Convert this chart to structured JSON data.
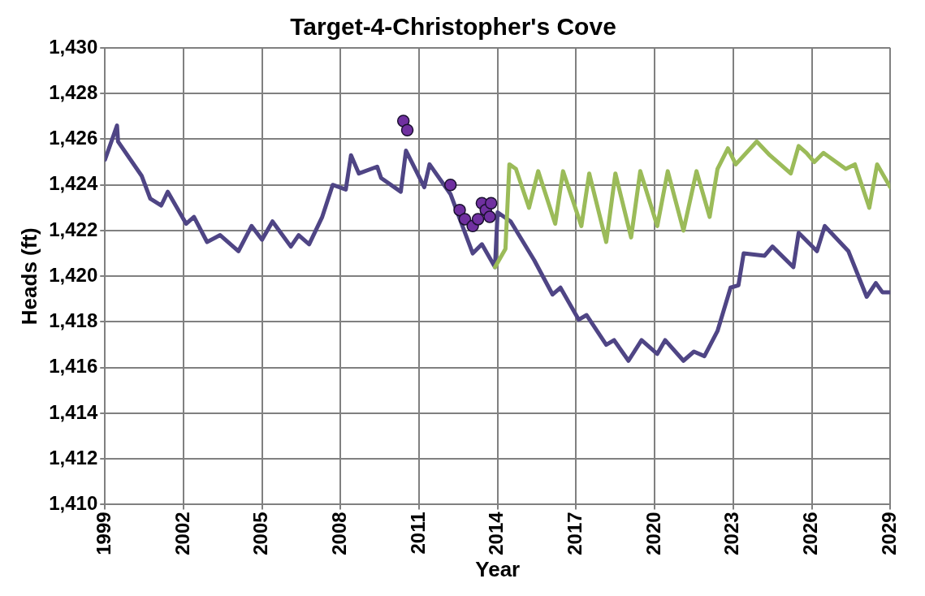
{
  "chart_data": {
    "type": "line",
    "title": "Target-4-Christopher's Cove",
    "xlabel": "Year",
    "ylabel": "Heads (ft)",
    "xlim": [
      1999,
      2029
    ],
    "xticks": [
      1999,
      2002,
      2005,
      2008,
      2011,
      2014,
      2017,
      2020,
      2023,
      2026,
      2029
    ],
    "ylim": [
      1410,
      1430
    ],
    "yticks": [
      {
        "value": 1410,
        "label": "1,410"
      },
      {
        "value": 1412,
        "label": "1,412"
      },
      {
        "value": 1414,
        "label": "1,414"
      },
      {
        "value": 1416,
        "label": "1,416"
      },
      {
        "value": 1418,
        "label": "1,418"
      },
      {
        "value": 1420,
        "label": "1,420"
      },
      {
        "value": 1422,
        "label": "1,422"
      },
      {
        "value": 1424,
        "label": "1,424"
      },
      {
        "value": 1426,
        "label": "1,426"
      },
      {
        "value": 1428,
        "label": "1,428"
      },
      {
        "value": 1430,
        "label": "1,430"
      }
    ],
    "grid": true,
    "legend": false,
    "marker": "none",
    "line_style": "solid",
    "series": [
      {
        "color": "#4f4585",
        "x": [
          1999.0,
          1999.46,
          1999.5,
          2000.4,
          2000.73,
          2001.15,
          2001.4,
          2002.1,
          2002.4,
          2002.9,
          2003.4,
          2004.1,
          2004.6,
          2005.0,
          2005.4,
          2006.1,
          2006.4,
          2006.8,
          2007.3,
          2007.7,
          2008.2,
          2008.4,
          2008.7,
          2009.4,
          2009.55,
          2010.3,
          2010.5,
          2011.2,
          2011.4,
          2012.2,
          2013.05,
          2013.4,
          2013.9,
          2014.0,
          2014.5,
          2015.4,
          2016.1,
          2016.4,
          2017.1,
          2017.4,
          2018.15,
          2018.45,
          2019.0,
          2019.5,
          2020.1,
          2020.4,
          2021.1,
          2021.5,
          2021.9,
          2022.4,
          2022.9,
          2023.2,
          2023.4,
          2024.2,
          2024.5,
          2025.3,
          2025.5,
          2026.2,
          2026.5,
          2027.4,
          2028.1,
          2028.45,
          2028.7,
          2029.0
        ],
        "values": [
          1425.1,
          1426.6,
          1425.9,
          1424.4,
          1423.4,
          1423.1,
          1423.7,
          1422.3,
          1422.6,
          1421.5,
          1421.8,
          1421.1,
          1422.2,
          1421.6,
          1422.4,
          1421.3,
          1421.8,
          1421.4,
          1422.6,
          1424.0,
          1423.8,
          1425.3,
          1424.5,
          1424.8,
          1424.3,
          1423.7,
          1425.5,
          1423.9,
          1424.9,
          1423.6,
          1421.0,
          1421.4,
          1420.4,
          1422.8,
          1422.4,
          1420.7,
          1419.2,
          1419.5,
          1418.1,
          1418.3,
          1417.0,
          1417.2,
          1416.3,
          1417.2,
          1416.6,
          1417.2,
          1416.3,
          1416.7,
          1416.5,
          1417.6,
          1419.5,
          1419.6,
          1421.0,
          1420.9,
          1421.3,
          1420.4,
          1421.9,
          1421.1,
          1422.2,
          1421.1,
          1419.1,
          1419.7,
          1419.3,
          1419.3
        ]
      },
      {
        "color": "#9bbb59",
        "x": [
          2013.9,
          2014.3,
          2014.45,
          2014.7,
          2015.2,
          2015.55,
          2016.2,
          2016.5,
          2017.2,
          2017.5,
          2018.15,
          2018.5,
          2019.1,
          2019.45,
          2020.1,
          2020.5,
          2021.1,
          2021.6,
          2022.1,
          2022.4,
          2022.8,
          2023.1,
          2023.9,
          2024.4,
          2025.2,
          2025.5,
          2025.8,
          2026.1,
          2026.45,
          2027.3,
          2027.65,
          2028.2,
          2028.5,
          2029.0
        ],
        "values": [
          1420.4,
          1421.2,
          1424.9,
          1424.7,
          1423.0,
          1424.6,
          1422.3,
          1424.6,
          1422.2,
          1424.5,
          1421.5,
          1424.5,
          1421.7,
          1424.6,
          1422.2,
          1424.6,
          1422.0,
          1424.6,
          1422.6,
          1424.7,
          1425.6,
          1424.9,
          1425.9,
          1425.3,
          1424.5,
          1425.7,
          1425.4,
          1425.0,
          1425.4,
          1424.7,
          1424.9,
          1423.0,
          1424.9,
          1423.9
        ]
      },
      {
        "type": "scatter",
        "color": "#7030a0",
        "marker": "circle",
        "x": [
          2010.4,
          2010.55,
          2012.2,
          2012.55,
          2012.75,
          2013.05,
          2013.25,
          2013.4,
          2013.55,
          2013.7,
          2013.75
        ],
        "values": [
          1426.8,
          1426.4,
          1424.0,
          1422.9,
          1422.5,
          1422.2,
          1422.5,
          1423.2,
          1422.9,
          1422.6,
          1423.2
        ]
      }
    ]
  }
}
